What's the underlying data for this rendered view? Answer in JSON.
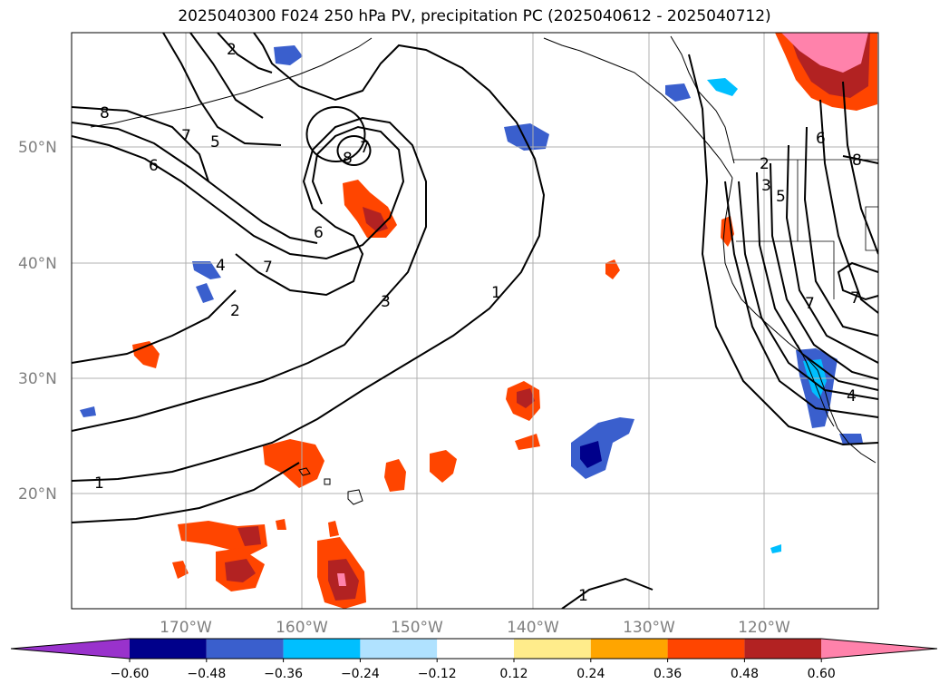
{
  "title": "2025040300 F024 250 hPa PV, precipitation PC (2025040612 - 2025040712)",
  "lat_labels": [
    "50°N",
    "40°N",
    "30°N",
    "20°N"
  ],
  "lon_labels": [
    "170°W",
    "160°W",
    "150°W",
    "140°W",
    "130°W",
    "120°W"
  ],
  "colorbar": {
    "colors": [
      "#9932cc",
      "#00008b",
      "#3a5fcd",
      "#00bfff",
      "#b0e2ff",
      "#ffffff",
      "#ffec8b",
      "#ffa500",
      "#ff4500",
      "#b22222",
      "#ff82ab"
    ],
    "ticks": [
      "−0.60",
      "−0.48",
      "−0.36",
      "−0.24",
      "−0.12",
      "0.12",
      "0.24",
      "0.36",
      "0.48",
      "0.60"
    ]
  },
  "contour_labels": [
    "2",
    "8",
    "7",
    "5",
    "6",
    "7",
    "8",
    "6",
    "7",
    "4",
    "2",
    "3",
    "1",
    "1",
    "1",
    "2",
    "3",
    "5",
    "6",
    "7",
    "7",
    "8",
    "4"
  ]
}
